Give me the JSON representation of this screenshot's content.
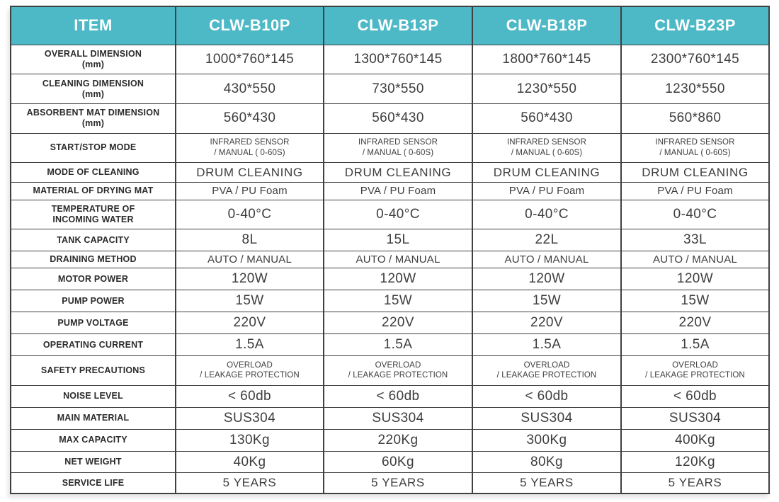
{
  "colors": {
    "accent": "#4db8c6",
    "border": "#404040",
    "header_text": "#ffffff",
    "label_text": "#2b2b2b",
    "value_text": "#3d3d3d"
  },
  "header": {
    "columns": [
      "ITEM",
      "CLW-B10P",
      "CLW-B13P",
      "CLW-B18P",
      "CLW-B23P"
    ]
  },
  "rows": [
    {
      "label": [
        "OVERALL DIMENSION",
        "(mm)"
      ],
      "size": "lg",
      "values": [
        "1000*760*145",
        "1300*760*145",
        "1800*760*145",
        "2300*760*145"
      ]
    },
    {
      "label": [
        "CLEANING DIMENSION",
        "(mm)"
      ],
      "size": "lg",
      "values": [
        "430*550",
        "730*550",
        "1230*550",
        "1230*550"
      ]
    },
    {
      "label": [
        "ABSORBENT MAT DIMENSION",
        "(mm)"
      ],
      "size": "lg",
      "values": [
        "560*430",
        "560*430",
        "560*430",
        "560*860"
      ]
    },
    {
      "label": [
        "START/STOP MODE"
      ],
      "size": "sm",
      "values": [
        [
          "INFRARED SENSOR",
          "/ MANUAL ( 0-60S)"
        ],
        [
          "INFRARED SENSOR",
          "/ MANUAL ( 0-60S)"
        ],
        [
          "INFRARED SENSOR",
          "/ MANUAL ( 0-60S)"
        ],
        [
          "INFRARED SENSOR",
          "/ MANUAL ( 0-60S)"
        ]
      ]
    },
    {
      "label": [
        "MODE OF CLEANING"
      ],
      "size": "mdlg",
      "values": [
        "DRUM CLEANING",
        "DRUM CLEANING",
        "DRUM CLEANING",
        "DRUM CLEANING"
      ]
    },
    {
      "label": [
        "MATERIAL OF DRYING MAT"
      ],
      "size": "md",
      "values": [
        "PVA / PU Foam",
        "PVA / PU Foam",
        "PVA / PU Foam",
        "PVA / PU Foam"
      ]
    },
    {
      "label": [
        "TEMPERATURE OF",
        "INCOMING WATER"
      ],
      "size": "lg",
      "values": [
        "0-40°C",
        "0-40°C",
        "0-40°C",
        "0-40°C"
      ]
    },
    {
      "label": [
        "TANK CAPACITY"
      ],
      "size": "lg",
      "values": [
        "8L",
        "15L",
        "22L",
        "33L"
      ]
    },
    {
      "label": [
        "DRAINING METHOD"
      ],
      "size": "md",
      "values": [
        "AUTO / MANUAL",
        "AUTO / MANUAL",
        "AUTO / MANUAL",
        "AUTO / MANUAL"
      ]
    },
    {
      "label": [
        "MOTOR POWER"
      ],
      "size": "lg",
      "values": [
        "120W",
        "120W",
        "120W",
        "120W"
      ]
    },
    {
      "label": [
        "PUMP POWER"
      ],
      "size": "lg",
      "values": [
        "15W",
        "15W",
        "15W",
        "15W"
      ]
    },
    {
      "label": [
        "PUMP VOLTAGE"
      ],
      "size": "lg",
      "values": [
        "220V",
        "220V",
        "220V",
        "220V"
      ]
    },
    {
      "label": [
        "OPERATING CURRENT"
      ],
      "size": "lg",
      "values": [
        "1.5A",
        "1.5A",
        "1.5A",
        "1.5A"
      ]
    },
    {
      "label": [
        "SAFETY PRECAUTIONS"
      ],
      "size": "sm",
      "values": [
        [
          "OVERLOAD",
          "/ LEAKAGE PROTECTION"
        ],
        [
          "OVERLOAD",
          "/ LEAKAGE PROTECTION"
        ],
        [
          "OVERLOAD",
          "/ LEAKAGE PROTECTION"
        ],
        [
          "OVERLOAD",
          "/ LEAKAGE PROTECTION"
        ]
      ]
    },
    {
      "label": [
        "NOISE LEVEL"
      ],
      "size": "lg",
      "values": [
        "< 60db",
        "< 60db",
        "< 60db",
        "< 60db"
      ]
    },
    {
      "label": [
        "MAIN MATERIAL"
      ],
      "size": "lg",
      "values": [
        "SUS304",
        "SUS304",
        "SUS304",
        "SUS304"
      ]
    },
    {
      "label": [
        "MAX CAPACITY"
      ],
      "size": "lg",
      "values": [
        "130Kg",
        "220Kg",
        "300Kg",
        "400Kg"
      ]
    },
    {
      "label": [
        "NET WEIGHT"
      ],
      "size": "lg",
      "values": [
        "40Kg",
        "60Kg",
        "80Kg",
        "120Kg"
      ]
    },
    {
      "label": [
        "SERVICE LIFE"
      ],
      "size": "mdlg",
      "values": [
        "5 YEARS",
        "5 YEARS",
        "5 YEARS",
        "5 YEARS"
      ]
    }
  ]
}
